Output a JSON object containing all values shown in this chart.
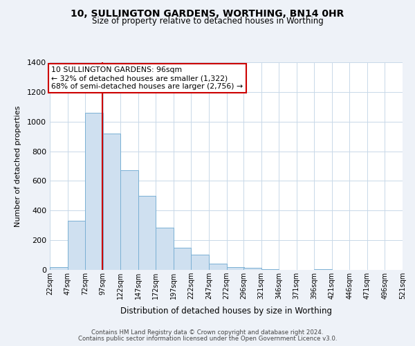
{
  "title": "10, SULLINGTON GARDENS, WORTHING, BN14 0HR",
  "subtitle": "Size of property relative to detached houses in Worthing",
  "xlabel": "Distribution of detached houses by size in Worthing",
  "ylabel": "Number of detached properties",
  "bins": [
    22,
    47,
    72,
    97,
    122,
    147,
    172,
    197,
    222,
    247,
    272,
    296,
    321,
    346,
    371,
    396,
    421,
    446,
    471,
    496,
    521
  ],
  "values": [
    20,
    330,
    1060,
    920,
    670,
    500,
    285,
    148,
    102,
    40,
    20,
    15,
    5,
    0,
    0,
    5,
    0,
    0,
    0,
    0
  ],
  "bar_color": "#cfe0f0",
  "bar_edge_color": "#7ab0d4",
  "property_size": 96,
  "property_line_color": "#cc0000",
  "annotation_line1": "10 SULLINGTON GARDENS: 96sqm",
  "annotation_line2": "← 32% of detached houses are smaller (1,322)",
  "annotation_line3": "68% of semi-detached houses are larger (2,756) →",
  "annotation_box_color": "#ffffff",
  "annotation_box_edge_color": "#cc0000",
  "ylim": [
    0,
    1400
  ],
  "yticks": [
    0,
    200,
    400,
    600,
    800,
    1000,
    1200,
    1400
  ],
  "tick_labels": [
    "22sqm",
    "47sqm",
    "72sqm",
    "97sqm",
    "122sqm",
    "147sqm",
    "172sqm",
    "197sqm",
    "222sqm",
    "247sqm",
    "272sqm",
    "296sqm",
    "321sqm",
    "346sqm",
    "371sqm",
    "396sqm",
    "421sqm",
    "446sqm",
    "471sqm",
    "496sqm",
    "521sqm"
  ],
  "footnote1": "Contains HM Land Registry data © Crown copyright and database right 2024.",
  "footnote2": "Contains public sector information licensed under the Open Government Licence v3.0.",
  "bg_color": "#eef2f8",
  "plot_bg_color": "#ffffff",
  "grid_color": "#c8d8e8"
}
